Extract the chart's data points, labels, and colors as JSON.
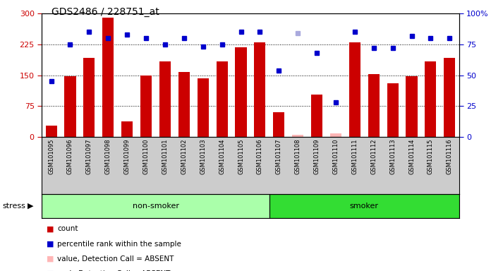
{
  "title": "GDS2486 / 228751_at",
  "samples": [
    "GSM101095",
    "GSM101096",
    "GSM101097",
    "GSM101098",
    "GSM101099",
    "GSM101100",
    "GSM101101",
    "GSM101102",
    "GSM101103",
    "GSM101104",
    "GSM101105",
    "GSM101106",
    "GSM101107",
    "GSM101108",
    "GSM101109",
    "GSM101110",
    "GSM101111",
    "GSM101112",
    "GSM101113",
    "GSM101114",
    "GSM101115",
    "GSM101116"
  ],
  "bar_values": [
    28,
    147,
    193,
    290,
    37,
    150,
    183,
    158,
    143,
    183,
    218,
    230,
    60,
    5,
    103,
    8,
    230,
    153,
    130,
    148,
    183,
    193
  ],
  "rank_values": [
    45,
    75,
    85,
    80,
    83,
    80,
    75,
    80,
    73,
    75,
    85,
    85,
    54,
    84,
    68,
    28,
    85,
    72,
    72,
    82,
    80,
    80
  ],
  "absent_bar": [
    false,
    false,
    false,
    false,
    false,
    false,
    false,
    false,
    false,
    false,
    false,
    false,
    false,
    true,
    false,
    true,
    false,
    false,
    false,
    false,
    false,
    false
  ],
  "absent_rank": [
    false,
    false,
    false,
    false,
    false,
    false,
    false,
    false,
    false,
    false,
    false,
    false,
    false,
    true,
    false,
    false,
    false,
    false,
    false,
    false,
    false,
    false
  ],
  "left_ylim": [
    0,
    300
  ],
  "right_ylim": [
    0,
    100
  ],
  "left_yticks": [
    0,
    75,
    150,
    225,
    300
  ],
  "right_yticks": [
    0,
    25,
    50,
    75,
    100
  ],
  "bar_color": "#CC0000",
  "absent_bar_color": "#FFB6B6",
  "rank_color": "#0000CC",
  "absent_rank_color": "#AAAADD",
  "non_smoker_color": "#AAFFAA",
  "smoker_color": "#33DD33",
  "bg_color": "#CCCCCC",
  "plot_bg": "#FFFFFF",
  "stress_label": "stress",
  "non_smoker_label": "non-smoker",
  "smoker_label": "smoker",
  "non_smoker_count": 12,
  "legend_items": [
    [
      "#CC0000",
      "count"
    ],
    [
      "#0000CC",
      "percentile rank within the sample"
    ],
    [
      "#FFB6B6",
      "value, Detection Call = ABSENT"
    ],
    [
      "#AAAADD",
      "rank, Detection Call = ABSENT"
    ]
  ]
}
